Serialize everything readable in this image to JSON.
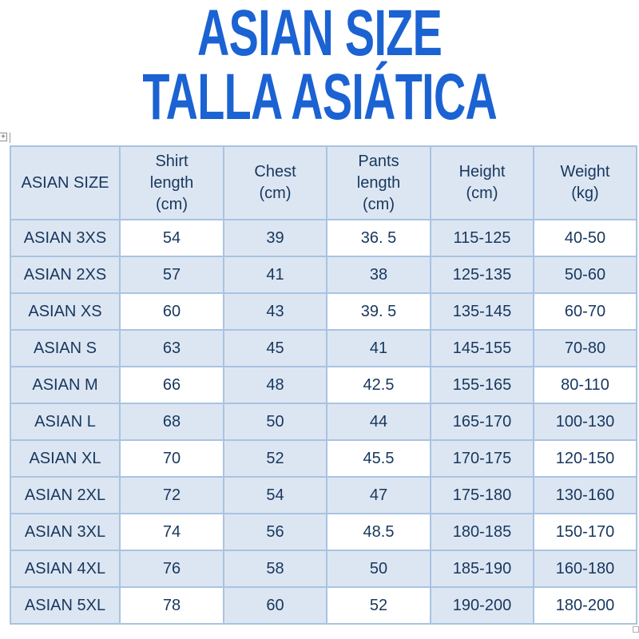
{
  "title": {
    "line1": "ASIAN SIZE",
    "line2": "TALLA ASIÁTICA"
  },
  "colors": {
    "title_blue": "#1b62d2",
    "text_navy": "#17375e",
    "cell_light_blue": "#dce6f2",
    "cell_white": "#ffffff",
    "table_border_blue": "#a9c3e2"
  },
  "icons": {
    "table_move_handle": "plus-crosshair",
    "table_resize_handle": "small-square"
  },
  "table": {
    "headers": [
      "ASIAN SIZE",
      "Shirt\nlength\n(cm)",
      "Chest\n(cm)",
      "Pants\nlength\n(cm)",
      "Height\n(cm)",
      "Weight\n(kg)"
    ],
    "white_columns": [
      1,
      3,
      5
    ],
    "rows": [
      {
        "striped": true,
        "cells": [
          "ASIAN 3XS",
          "54",
          "39",
          "36. 5",
          "115-125",
          "40-50"
        ]
      },
      {
        "striped": false,
        "cells": [
          "ASIAN 2XS",
          "57",
          "41",
          "38",
          "125-135",
          "50-60"
        ]
      },
      {
        "striped": true,
        "cells": [
          "ASIAN XS",
          "60",
          "43",
          "39. 5",
          "135-145",
          "60-70"
        ]
      },
      {
        "striped": false,
        "cells": [
          "ASIAN S",
          "63",
          "45",
          "41",
          "145-155",
          "70-80"
        ]
      },
      {
        "striped": true,
        "cells": [
          "ASIAN M",
          "66",
          "48",
          "42.5",
          "155-165",
          "80-110"
        ]
      },
      {
        "striped": false,
        "cells": [
          "ASIAN L",
          "68",
          "50",
          "44",
          "165-170",
          "100-130"
        ]
      },
      {
        "striped": true,
        "cells": [
          "ASIAN XL",
          "70",
          "52",
          "45.5",
          "170-175",
          "120-150"
        ]
      },
      {
        "striped": false,
        "cells": [
          "ASIAN 2XL",
          "72",
          "54",
          "47",
          "175-180",
          "130-160"
        ]
      },
      {
        "striped": true,
        "cells": [
          "ASIAN 3XL",
          "74",
          "56",
          "48.5",
          "180-185",
          "150-170"
        ]
      },
      {
        "striped": false,
        "cells": [
          "ASIAN 4XL",
          "76",
          "58",
          "50",
          "185-190",
          "160-180"
        ]
      },
      {
        "striped": true,
        "cells": [
          "ASIAN 5XL",
          "78",
          "60",
          "52",
          "190-200",
          "180-200"
        ]
      }
    ]
  }
}
